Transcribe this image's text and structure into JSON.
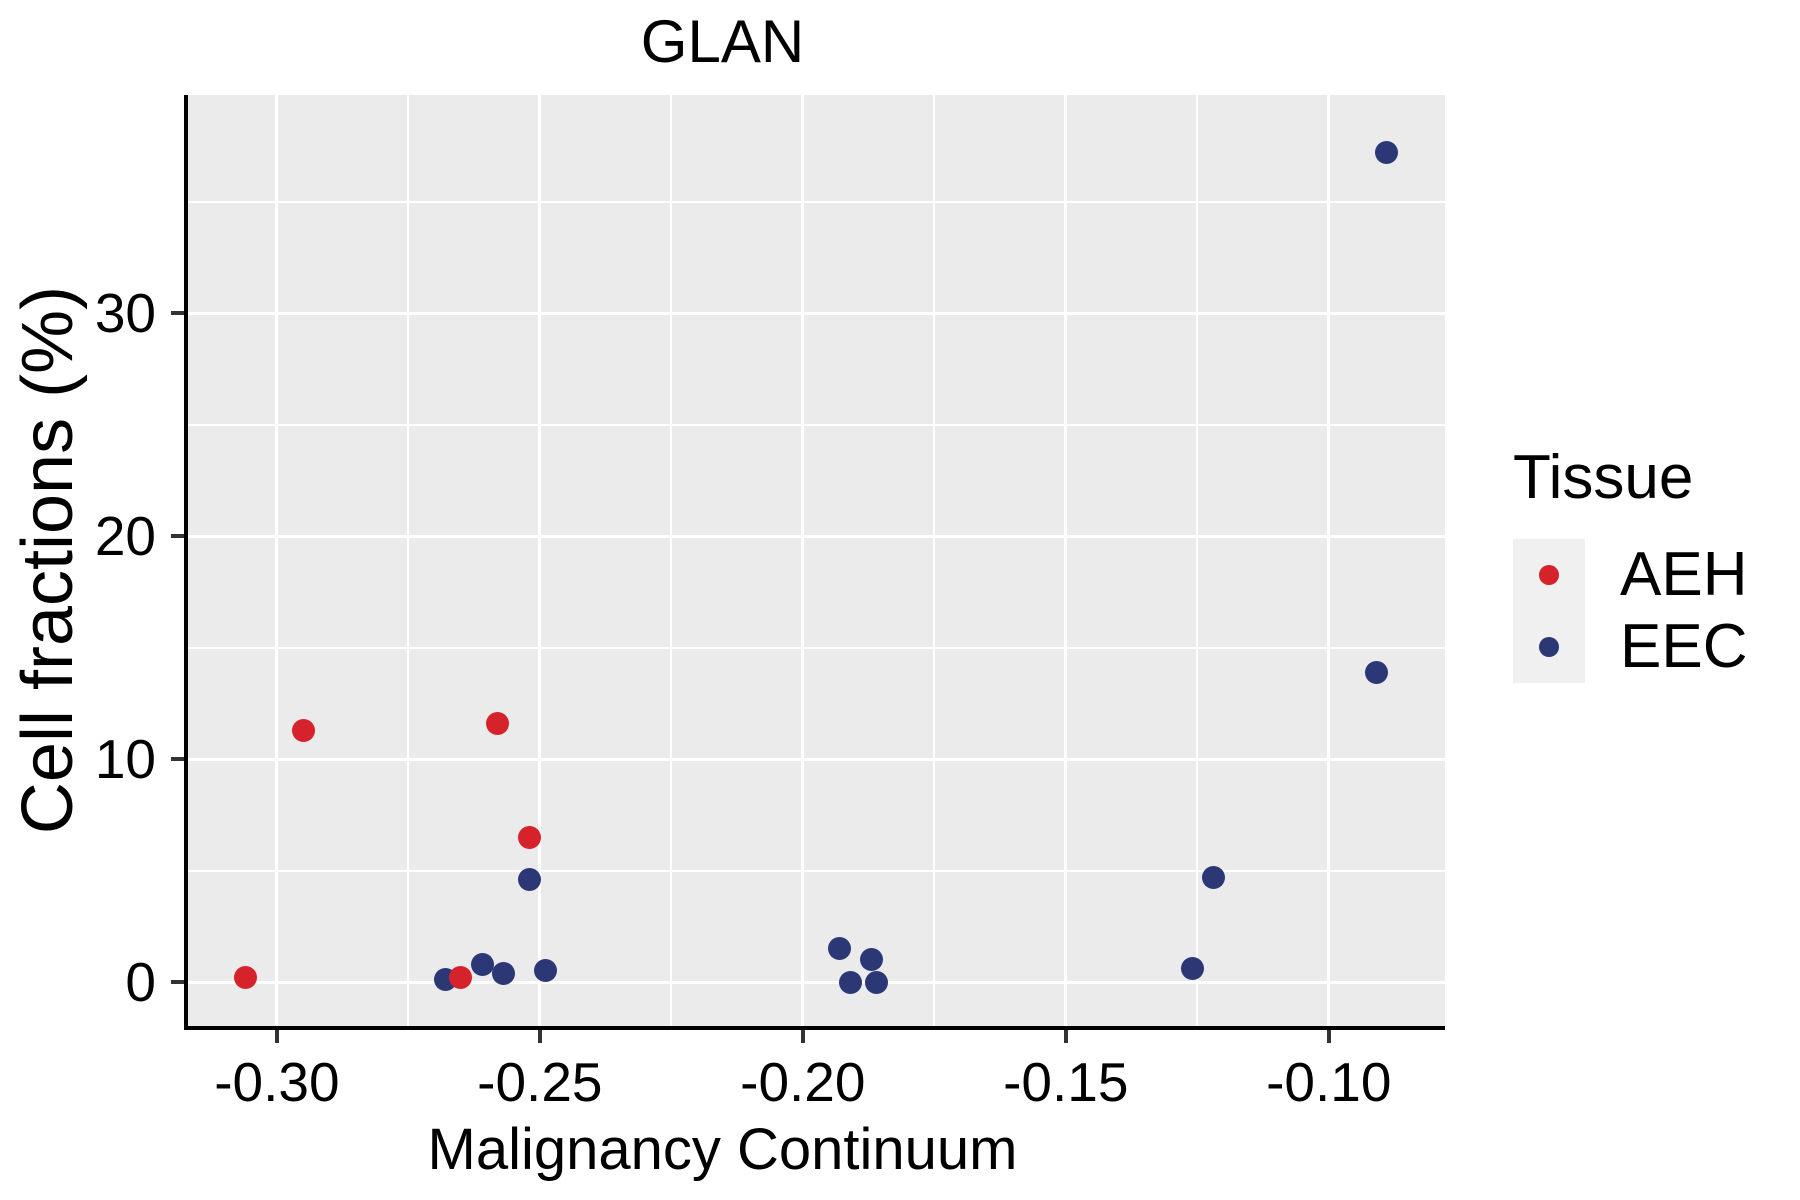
{
  "title": "GLAN",
  "axes": {
    "x": {
      "label": "Malignancy Continuum",
      "ticks": [
        -0.3,
        -0.25,
        -0.2,
        -0.15,
        -0.1
      ],
      "tick_labels": [
        "-0.30",
        "-0.25",
        "-0.20",
        "-0.15",
        "-0.10"
      ],
      "minor_ticks": [
        -0.275,
        -0.225,
        -0.175,
        -0.125
      ]
    },
    "y": {
      "label": "Cell fractions (%)",
      "ticks": [
        0,
        10,
        20,
        30
      ],
      "tick_labels": [
        "0",
        "10",
        "20",
        "30"
      ],
      "minor_ticks": [
        5,
        15,
        25,
        35
      ]
    }
  },
  "legend": {
    "title": "Tissue",
    "items": [
      {
        "label": "AEH",
        "color": "#D6222A"
      },
      {
        "label": "EEC",
        "color": "#2B3875"
      }
    ]
  },
  "colors": {
    "panel_background": "#EBEBEB",
    "gridline": "#FFFFFF",
    "axis_line": "#000000",
    "tick_mark": "#333333",
    "legend_key_background": "#F0F0F0",
    "aeh": "#D6222A",
    "eec": "#2B3875"
  },
  "chart_data": {
    "type": "scatter",
    "title": "GLAN",
    "xlabel": "Malignancy Continuum",
    "ylabel": "Cell fractions (%)",
    "xlim": [
      -0.3169,
      -0.0779
    ],
    "ylim": [
      -1.97,
      39.78
    ],
    "grid": true,
    "legend_position": "right",
    "legend_title": "Tissue",
    "series": [
      {
        "name": "AEH",
        "color": "#D6222A",
        "points": [
          [
            -0.306,
            0.2
          ],
          [
            -0.295,
            11.3
          ],
          [
            -0.265,
            0.2
          ],
          [
            -0.258,
            11.6
          ],
          [
            -0.252,
            6.5
          ]
        ]
      },
      {
        "name": "EEC",
        "color": "#2B3875",
        "points": [
          [
            -0.268,
            0.1
          ],
          [
            -0.261,
            0.8
          ],
          [
            -0.257,
            0.4
          ],
          [
            -0.249,
            0.5
          ],
          [
            -0.252,
            4.6
          ],
          [
            -0.193,
            1.5
          ],
          [
            -0.191,
            0.0
          ],
          [
            -0.187,
            1.0
          ],
          [
            -0.186,
            0.0
          ],
          [
            -0.126,
            0.6
          ],
          [
            -0.122,
            4.7
          ],
          [
            -0.091,
            13.9
          ],
          [
            -0.089,
            37.2
          ]
        ]
      }
    ]
  }
}
